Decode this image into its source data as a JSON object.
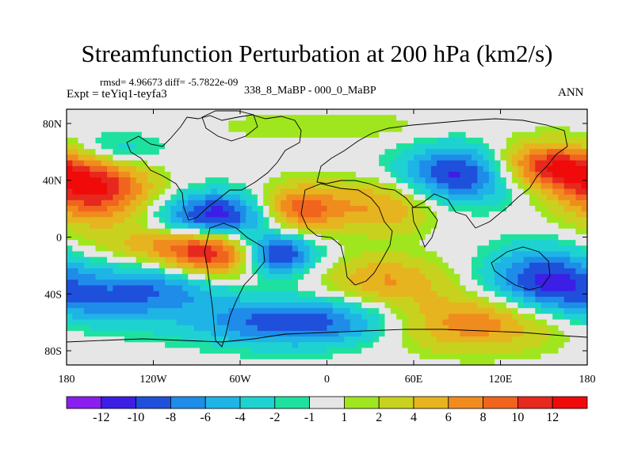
{
  "chart_data": {
    "type": "heatmap",
    "title": "Streamfunction Perturbation at 200 hPa (km2/s)",
    "stats_line": "rmsd= 4.96673 diff= -5.7822e-09",
    "left_label": "Expt = teYiq1-teyfa3",
    "center_label": "338_8_MaBP - 000_0_MaBP",
    "right_label": "ANN",
    "x_ticks": [
      "180",
      "120W",
      "60W",
      "0",
      "60E",
      "120E",
      "180"
    ],
    "x_tick_values": [
      -180,
      -120,
      -60,
      0,
      60,
      120,
      180
    ],
    "y_ticks": [
      "80N",
      "40N",
      "0",
      "40S",
      "80S"
    ],
    "y_tick_values": [
      80,
      40,
      0,
      -40,
      -80
    ],
    "xlim": [
      -180,
      180
    ],
    "ylim": [
      -90,
      90
    ],
    "colorbar_labels": [
      "-12",
      "-10",
      "-8",
      "-6",
      "-4",
      "-2",
      "-1",
      "1",
      "2",
      "4",
      "6",
      "8",
      "10",
      "12"
    ],
    "colorbar_colors": [
      "#8a1ef0",
      "#3c1ee6",
      "#1e50dc",
      "#1e8ce8",
      "#1eb4e6",
      "#1ed2d2",
      "#1ee1a0",
      "#e6e6e6",
      "#a0e61e",
      "#c8d21e",
      "#e6b41e",
      "#f08c1e",
      "#f0641e",
      "#e6281e",
      "#f00a0a"
    ],
    "field_centers": [
      {
        "lon": -160,
        "lat": 35,
        "amp": 12,
        "sx": 28,
        "sy": 18
      },
      {
        "lon": -150,
        "lat": 60,
        "amp": -6,
        "sx": 25,
        "sy": 10
      },
      {
        "lon": -75,
        "lat": 15,
        "amp": -12,
        "sx": 28,
        "sy": 12
      },
      {
        "lon": -20,
        "lat": 20,
        "amp": 10,
        "sx": 22,
        "sy": 12
      },
      {
        "lon": 40,
        "lat": 22,
        "amp": 6,
        "sx": 25,
        "sy": 14
      },
      {
        "lon": 95,
        "lat": 45,
        "amp": -12,
        "sx": 30,
        "sy": 14
      },
      {
        "lon": 150,
        "lat": 50,
        "amp": 12,
        "sx": 30,
        "sy": 12
      },
      {
        "lon": -80,
        "lat": -12,
        "amp": 12,
        "sx": 25,
        "sy": 12
      },
      {
        "lon": -35,
        "lat": -12,
        "amp": -12,
        "sx": 18,
        "sy": 10
      },
      {
        "lon": -160,
        "lat": -45,
        "amp": -6,
        "sx": 35,
        "sy": 14
      },
      {
        "lon": -20,
        "lat": -60,
        "amp": -10,
        "sx": 50,
        "sy": 12
      },
      {
        "lon": 40,
        "lat": -30,
        "amp": 6,
        "sx": 30,
        "sy": 12
      },
      {
        "lon": 150,
        "lat": -30,
        "amp": -10,
        "sx": 28,
        "sy": 16
      },
      {
        "lon": 100,
        "lat": -60,
        "amp": 8,
        "sx": 45,
        "sy": 14
      },
      {
        "lon": -110,
        "lat": -35,
        "amp": -6,
        "sx": 30,
        "sy": 12
      },
      {
        "lon": 0,
        "lat": 78,
        "amp": 2,
        "sx": 60,
        "sy": 8
      },
      {
        "lon": -120,
        "lat": -5,
        "amp": 4,
        "sx": 30,
        "sy": 8
      }
    ]
  }
}
